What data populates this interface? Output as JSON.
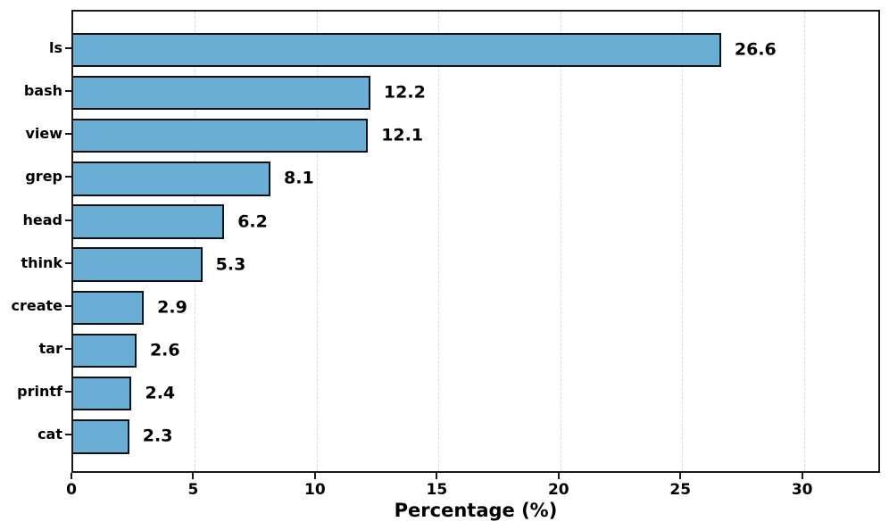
{
  "chart_data": {
    "type": "bar",
    "orientation": "horizontal",
    "title": "",
    "xlabel": "Percentage (%)",
    "ylabel": "",
    "categories": [
      "ls",
      "bash",
      "view",
      "grep",
      "head",
      "think",
      "create",
      "tar",
      "printf",
      "cat"
    ],
    "values": [
      26.6,
      12.2,
      12.1,
      8.1,
      6.2,
      5.3,
      2.9,
      2.6,
      2.4,
      2.3
    ],
    "value_labels": [
      "26.6",
      "12.2",
      "12.1",
      "8.1",
      "6.2",
      "5.3",
      "2.9",
      "2.6",
      "2.4",
      "2.3"
    ],
    "xticks": [
      0,
      5,
      10,
      15,
      20,
      25,
      30
    ],
    "xtick_labels": [
      "0",
      "5",
      "10",
      "15",
      "20",
      "25",
      "30"
    ],
    "xlim": [
      0,
      33.2
    ],
    "grid": "vertical-dashed",
    "legend": "none",
    "colors": {
      "bar_fill": "#6aaed6",
      "bar_edge": "#111111",
      "grid": "#d9d9d9",
      "axis": "#1a1a1a",
      "text": "#000000",
      "background": "#ffffff"
    }
  }
}
